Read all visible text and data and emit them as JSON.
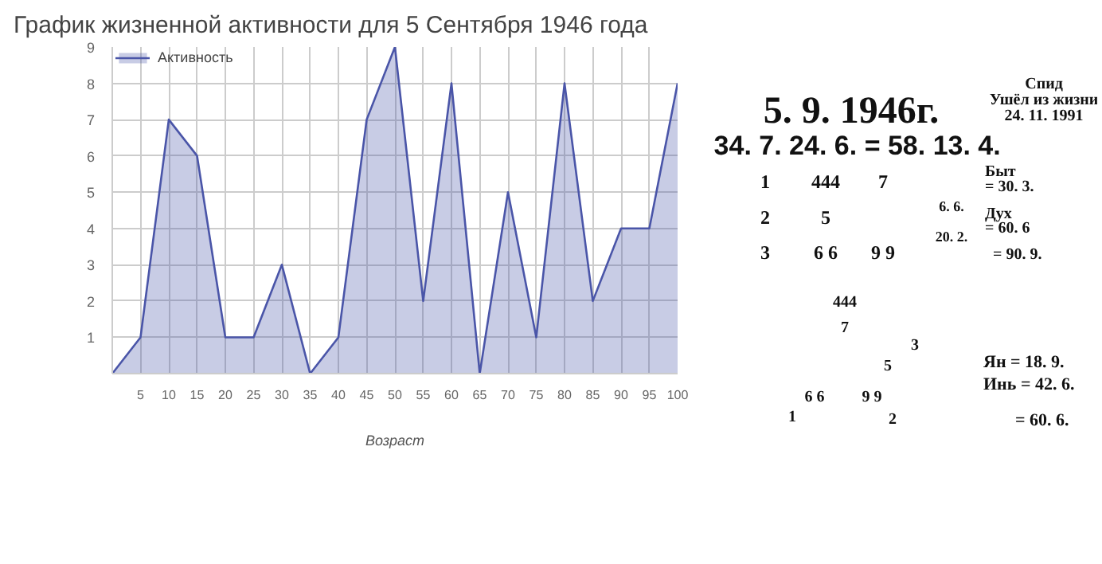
{
  "chart_data": [
    {
      "type": "area",
      "title": "График жизненной активности для 5 Сентября 1946 года",
      "xlabel": "Возраст",
      "x": [
        0,
        5,
        10,
        15,
        20,
        25,
        30,
        35,
        40,
        45,
        50,
        55,
        60,
        65,
        70,
        75,
        80,
        85,
        90,
        95,
        100
      ],
      "series": [
        {
          "name": "Активность",
          "color": "#4a55a8",
          "values": [
            0,
            1,
            7,
            6,
            1,
            1,
            3,
            0,
            1,
            7,
            9,
            2,
            8,
            0,
            5,
            1,
            8,
            2,
            4,
            4,
            8
          ]
        }
      ],
      "xlim": [
        0,
        100
      ],
      "xticks": [
        5,
        10,
        15,
        20,
        25,
        30,
        35,
        40,
        45,
        50,
        55,
        60,
        65,
        70,
        75,
        80,
        85,
        90,
        95,
        100
      ],
      "ylim": [
        0,
        9
      ],
      "yticks": [
        1,
        2,
        3,
        4,
        5,
        6,
        7,
        8,
        9
      ],
      "grid": true,
      "legend": "top left"
    },
    {
      "type": "other",
      "annotations": [
        "Спид",
        "Ушёл из жизни",
        "24. 11. 1991",
        "5. 9. 1946г.",
        "34. 7.   24. 6.   =   58. 13. 4.",
        "1",
        "444",
        "7",
        "2",
        "5",
        "3",
        "6 6",
        "9 9",
        "6. 6.",
        "20. 2.",
        "Быт",
        "= 30. 3.",
        "Дух",
        "= 60. 6",
        "= 90. 9.",
        "444",
        "7",
        "3",
        "5",
        "6 6",
        "1",
        "9 9",
        "2",
        "Ян = 18. 9.",
        "Инь = 42. 6.",
        "= 60. 6."
      ]
    }
  ]
}
